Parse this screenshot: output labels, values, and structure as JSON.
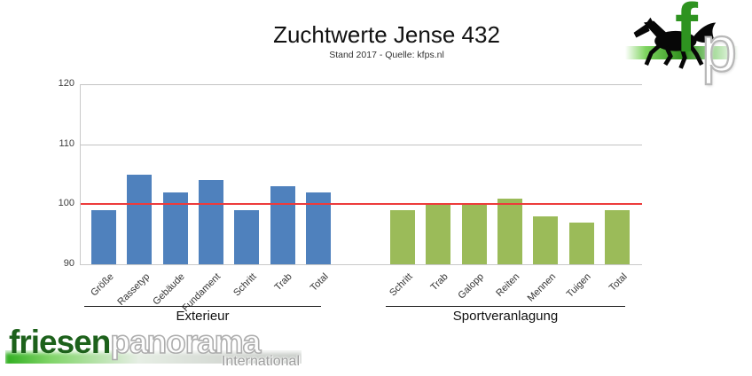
{
  "chart_data": {
    "type": "bar",
    "title": "Zuchtwerte Jense 432",
    "subtitle": "Stand 2017 - Quelle: kfps.nl",
    "ylim": [
      90,
      120
    ],
    "yticks": [
      120,
      110,
      100,
      90
    ],
    "gridlines": [
      120,
      110
    ],
    "grid": true,
    "legend": false,
    "reference_line": {
      "value": 100,
      "color": "#ed3b3b"
    },
    "groups": [
      {
        "label": "Exterieur",
        "color": "#4f81bd",
        "categories": [
          "Größe",
          "Rassetyp",
          "Gebäude",
          "Fundament",
          "Schritt",
          "Trab",
          "Total"
        ],
        "values": [
          99,
          105,
          102,
          104,
          99,
          103,
          102
        ]
      },
      {
        "label": "Sportveranlagung",
        "color": "#9bbb59",
        "categories": [
          "Schritt",
          "Trab",
          "Galopp",
          "Reiten",
          "Mennen",
          "Tuigen",
          "Total"
        ],
        "values": [
          99,
          100,
          100,
          101,
          98,
          97,
          99
        ]
      }
    ]
  },
  "logos": {
    "top_right": {
      "letter_f": "f",
      "letter_p": "p"
    },
    "bottom_left": {
      "part1": "friesen",
      "part2": "panorama",
      "part3": "International"
    }
  },
  "colors": {
    "bar_blue": "#4f81bd",
    "bar_green": "#9bbb59",
    "red_line": "#ed3b3b",
    "grid": "#c3c3c3",
    "logo_dark_green": "#1d611b",
    "logo_bright_green": "#2e9320"
  }
}
